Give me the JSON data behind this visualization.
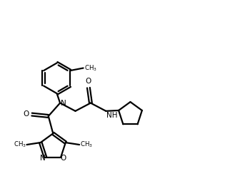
{
  "bg_color": "#ffffff",
  "line_color": "#000000",
  "line_width": 1.6,
  "figsize": [
    3.15,
    2.54
  ],
  "dpi": 100,
  "xlim": [
    0,
    10
  ],
  "ylim": [
    0,
    8.5
  ],
  "font_size_atom": 7.5,
  "font_size_small": 6.5
}
